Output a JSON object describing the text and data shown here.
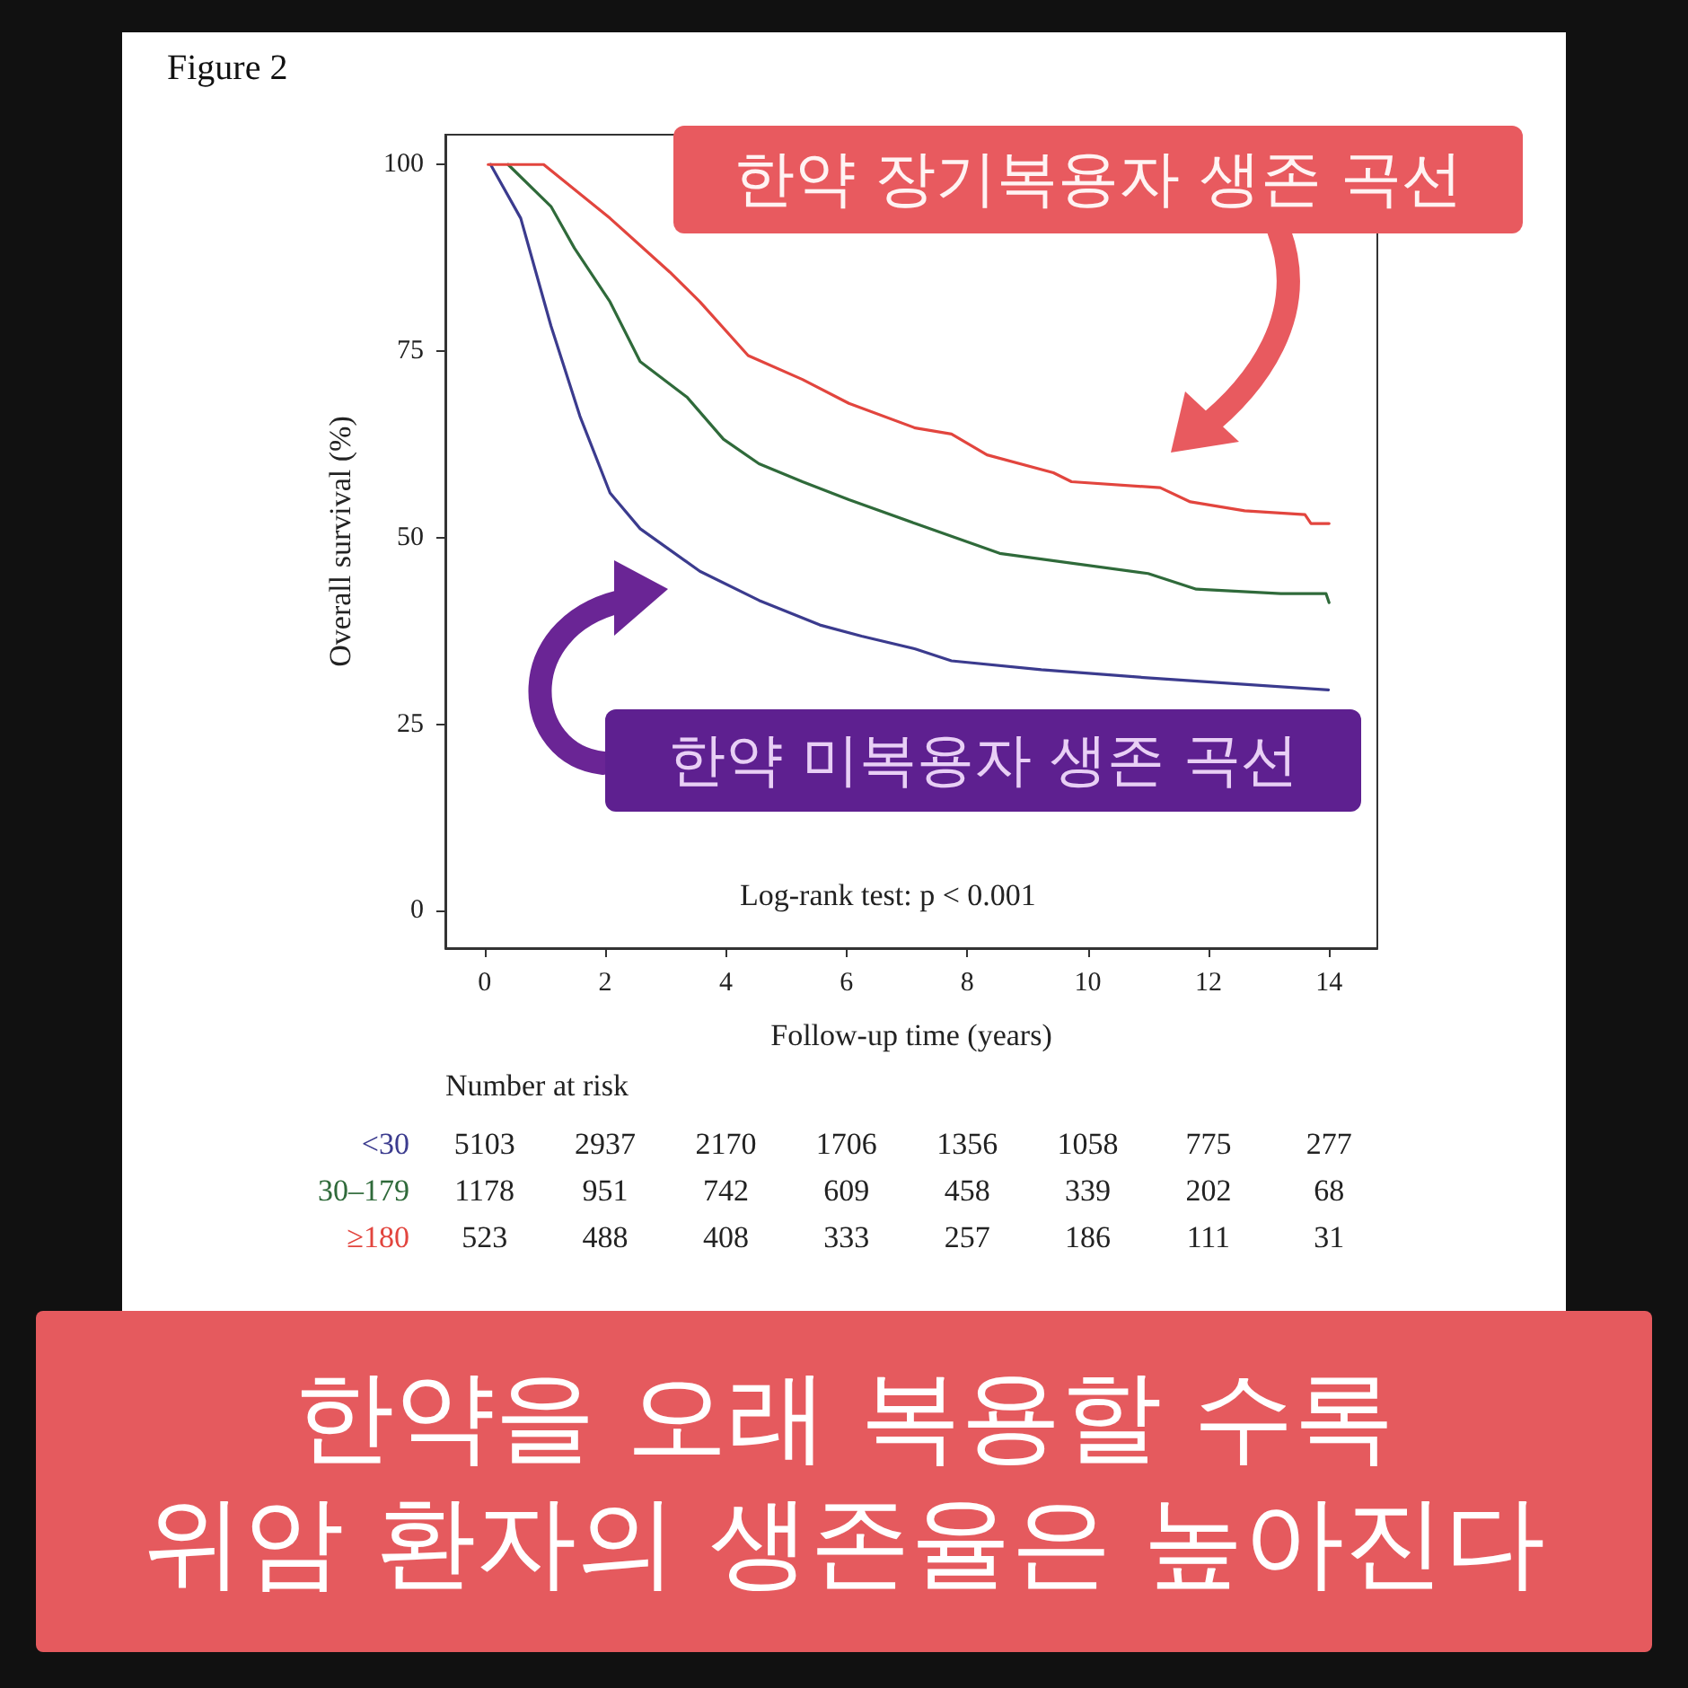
{
  "chart_data": {
    "type": "line",
    "xlabel": "Follow-up time (years)",
    "ylabel": "Overall survival (%)",
    "xlim": [
      -0.65,
      14.8
    ],
    "ylim": [
      -5,
      104
    ],
    "xticks": [
      0,
      2,
      4,
      6,
      8,
      10,
      12,
      14
    ],
    "yticks": [
      0,
      25,
      50,
      75,
      100
    ],
    "grid": false,
    "marker": "none",
    "line_style": "solid",
    "series": [
      {
        "name": "<30",
        "color": "#3b3b8e",
        "x": [
          0.1,
          0.6,
          1.1,
          1.58,
          2.08,
          2.58,
          3.57,
          4.55,
          5.56,
          6.25,
          7.14,
          7.74,
          9.23,
          11.2,
          13.99
        ],
        "values": [
          100,
          92.8,
          78.4,
          66.3,
          56,
          51.2,
          45.5,
          41.6,
          38.3,
          36.8,
          35.1,
          33.5,
          32.3,
          31.1,
          29.6
        ]
      },
      {
        "name": "30–179",
        "color": "#2f6a3a",
        "x": [
          0.39,
          1.1,
          1.49,
          2.08,
          2.58,
          3.36,
          3.96,
          4.55,
          5.27,
          6.04,
          7.14,
          8.54,
          11.0,
          11.8,
          13.2,
          13.95,
          14.0
        ],
        "values": [
          100,
          94.4,
          88.8,
          81.6,
          73.6,
          68.8,
          63.2,
          59.9,
          57.5,
          55.1,
          51.9,
          47.9,
          45.2,
          43.1,
          42.5,
          42.5,
          41.3
        ]
      },
      {
        "name": "≥180",
        "color": "#e2453e",
        "x": [
          0.06,
          0.98,
          2.08,
          3.07,
          3.57,
          4.37,
          5.27,
          6.04,
          7.14,
          7.74,
          8.33,
          9.43,
          9.73,
          11.2,
          11.7,
          12.6,
          13.6,
          13.7,
          14.0
        ],
        "values": [
          100,
          100,
          92.8,
          85.6,
          81.6,
          74.4,
          71.2,
          68,
          64.7,
          63.9,
          61.1,
          58.7,
          57.5,
          56.7,
          54.8,
          53.6,
          53.1,
          51.9,
          51.9
        ]
      }
    ],
    "annotations": [
      "Figure 2",
      "Log-rank test: p < 0.001",
      "한약 장기복용자 생존 곡선",
      "한약 미복용자 생존 곡선",
      "한약을 오래 복용할 수록",
      "위암 환자의 생존율은 높아진다",
      "Number at risk",
      "5103 2937 2170 1706 1356 1058 775 277",
      "1178 951 742 609 458 339 202 68",
      "523 488 408 333 257 186 111 31"
    ]
  }
}
